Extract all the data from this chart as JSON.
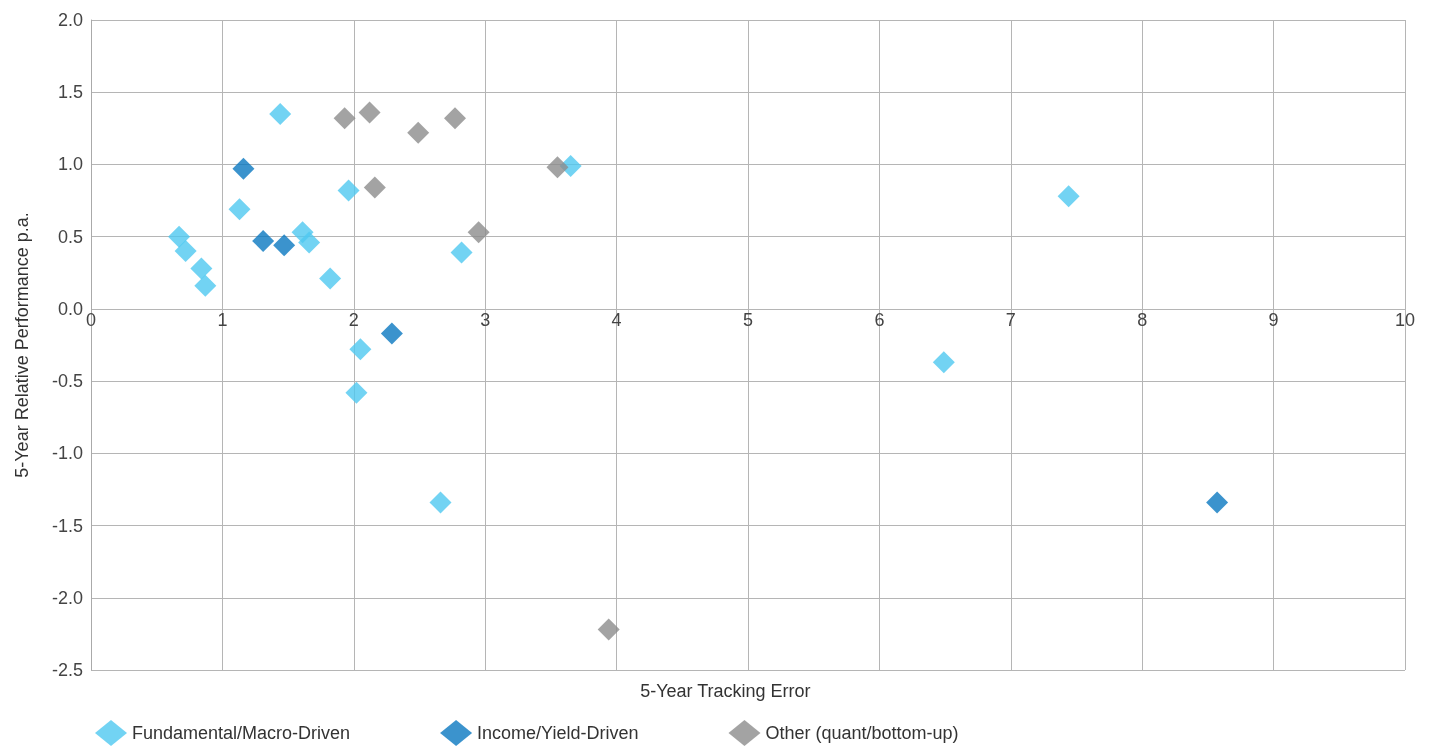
{
  "chart_data": {
    "type": "scatter",
    "xlabel": "5-Year Tracking Error",
    "ylabel": "5-Year Relative Performance p.a.",
    "xlim": [
      0,
      10
    ],
    "xticks": [
      0,
      1,
      2,
      3,
      4,
      5,
      6,
      7,
      8,
      9,
      10
    ],
    "ylim": [
      -2.5,
      2
    ],
    "yticks": [
      {
        "value": -2.5,
        "label": "-2.5"
      },
      {
        "value": -2,
        "label": "-2.0"
      },
      {
        "value": -1.5,
        "label": "-1.5"
      },
      {
        "value": -1,
        "label": "-1.0"
      },
      {
        "value": -0.5,
        "label": "-0.5"
      },
      {
        "value": 0,
        "label": "0.0"
      },
      {
        "value": 0.5,
        "label": "0.5"
      },
      {
        "value": 1,
        "label": "1.0"
      },
      {
        "value": 1.5,
        "label": "1.5"
      },
      {
        "value": 2,
        "label": "2.0"
      }
    ],
    "grid": true,
    "legend": "bottom",
    "marker": "diamond",
    "series": [
      {
        "name": "Fundamental/Macro-Driven",
        "color": "#4fc8f0",
        "x": [
          0.67,
          0.72,
          0.84,
          0.87,
          1.13,
          1.44,
          1.61,
          1.66,
          1.82,
          1.96,
          2.05,
          2.02,
          2.66,
          2.82,
          3.65,
          6.49,
          7.44
        ],
        "values": [
          0.5,
          0.4,
          0.28,
          0.16,
          0.69,
          1.35,
          0.53,
          0.46,
          0.21,
          0.82,
          -0.28,
          -0.58,
          -1.34,
          0.39,
          0.99,
          -0.37,
          0.78
        ]
      },
      {
        "name": "Income/Yield-Driven",
        "color": "#0a78c0",
        "x": [
          1.16,
          1.31,
          1.47,
          2.29,
          8.57
        ],
        "values": [
          0.97,
          0.47,
          0.44,
          -0.17,
          -1.34
        ]
      },
      {
        "name": "Other (quant/bottom-up)",
        "color": "#8c8c8c",
        "x": [
          1.93,
          2.12,
          2.16,
          2.49,
          2.77,
          2.95,
          3.55,
          3.94
        ],
        "values": [
          1.32,
          1.36,
          0.84,
          1.22,
          1.32,
          0.53,
          0.98,
          -2.22
        ]
      }
    ]
  }
}
